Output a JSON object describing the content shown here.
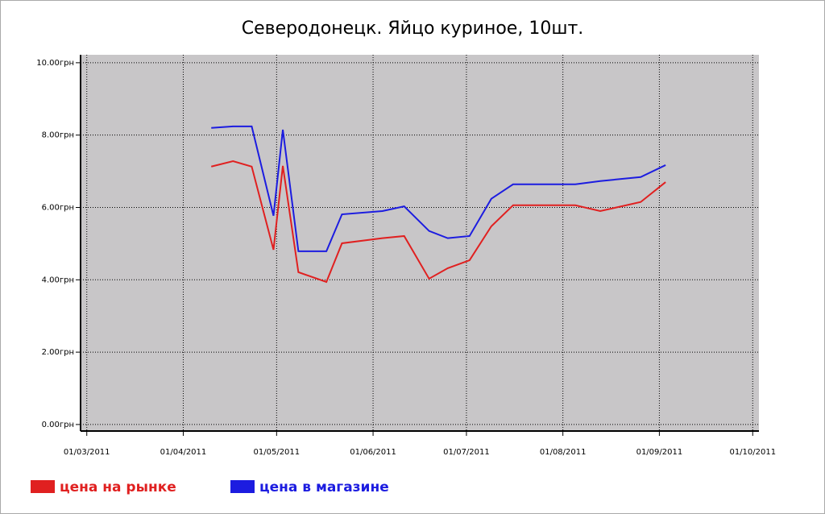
{
  "chart_data": {
    "type": "line",
    "title": "Северодонецк. Яйцо куриное, 10шт.",
    "x": [
      "2011-04-10",
      "2011-04-17",
      "2011-04-23",
      "2011-04-30",
      "2011-05-03",
      "2011-05-08",
      "2011-05-17",
      "2011-05-22",
      "2011-06-04",
      "2011-06-11",
      "2011-06-19",
      "2011-06-25",
      "2011-07-02",
      "2011-07-09",
      "2011-07-16",
      "2011-08-05",
      "2011-08-13",
      "2011-08-26",
      "2011-09-03"
    ],
    "series": [
      {
        "name": "цена на рынке",
        "color": "#e02020",
        "values": [
          7.13,
          7.28,
          7.13,
          4.83,
          7.15,
          4.21,
          3.94,
          5.01,
          5.15,
          5.21,
          4.03,
          4.32,
          4.54,
          5.48,
          6.06,
          6.06,
          5.9,
          6.15,
          6.7
        ]
      },
      {
        "name": "цена в магазине",
        "color": "#1c1ce0",
        "values": [
          8.2,
          8.24,
          8.24,
          5.77,
          8.15,
          4.79,
          4.79,
          5.81,
          5.9,
          6.03,
          5.35,
          5.15,
          5.21,
          6.24,
          6.64,
          6.64,
          6.73,
          6.84,
          7.17
        ]
      }
    ],
    "xlim": [
      "2011-02-27",
      "2011-10-03"
    ],
    "xticks": [
      {
        "value": "2011-03-01",
        "label": "01/03/2011"
      },
      {
        "value": "2011-04-01",
        "label": "01/04/2011"
      },
      {
        "value": "2011-05-01",
        "label": "01/05/2011"
      },
      {
        "value": "2011-06-01",
        "label": "01/06/2011"
      },
      {
        "value": "2011-07-01",
        "label": "01/07/2011"
      },
      {
        "value": "2011-08-01",
        "label": "01/08/2011"
      },
      {
        "value": "2011-09-01",
        "label": "01/09/2011"
      },
      {
        "value": "2011-10-01",
        "label": "01/10/2011"
      }
    ],
    "ylim": [
      -0.18,
      10.22
    ],
    "yticks": [
      {
        "value": 0,
        "label": "0.00грн"
      },
      {
        "value": 2,
        "label": "2.00грн"
      },
      {
        "value": 4,
        "label": "4.00грн"
      },
      {
        "value": 6,
        "label": "6.00грн"
      },
      {
        "value": 8,
        "label": "8.00грн"
      },
      {
        "value": 10,
        "label": "10.00грн"
      }
    ],
    "grid": true,
    "background": "#c8c6c8"
  }
}
